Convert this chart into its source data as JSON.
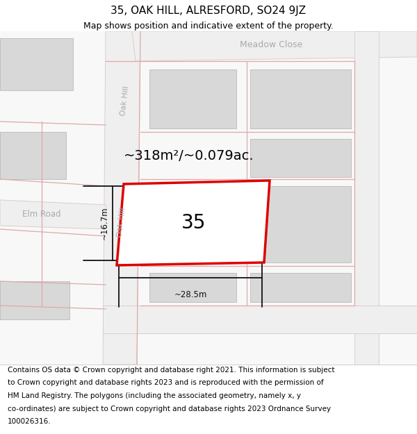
{
  "title": "35, OAK HILL, ALRESFORD, SO24 9JZ",
  "subtitle": "Map shows position and indicative extent of the property.",
  "footer_lines": [
    "Contains OS data © Crown copyright and database right 2021. This information is subject",
    "to Crown copyright and database rights 2023 and is reproduced with the permission of",
    "HM Land Registry. The polygons (including the associated geometry, namely x, y",
    "co-ordinates) are subject to Crown copyright and database rights 2023 Ordnance Survey",
    "100026316."
  ],
  "area_label": "~318m²/~0.079ac.",
  "width_label": "~28.5m",
  "height_label": "~16.7m",
  "plot_number": "35",
  "title_fontsize": 11,
  "subtitle_fontsize": 9,
  "footer_fontsize": 7.5
}
